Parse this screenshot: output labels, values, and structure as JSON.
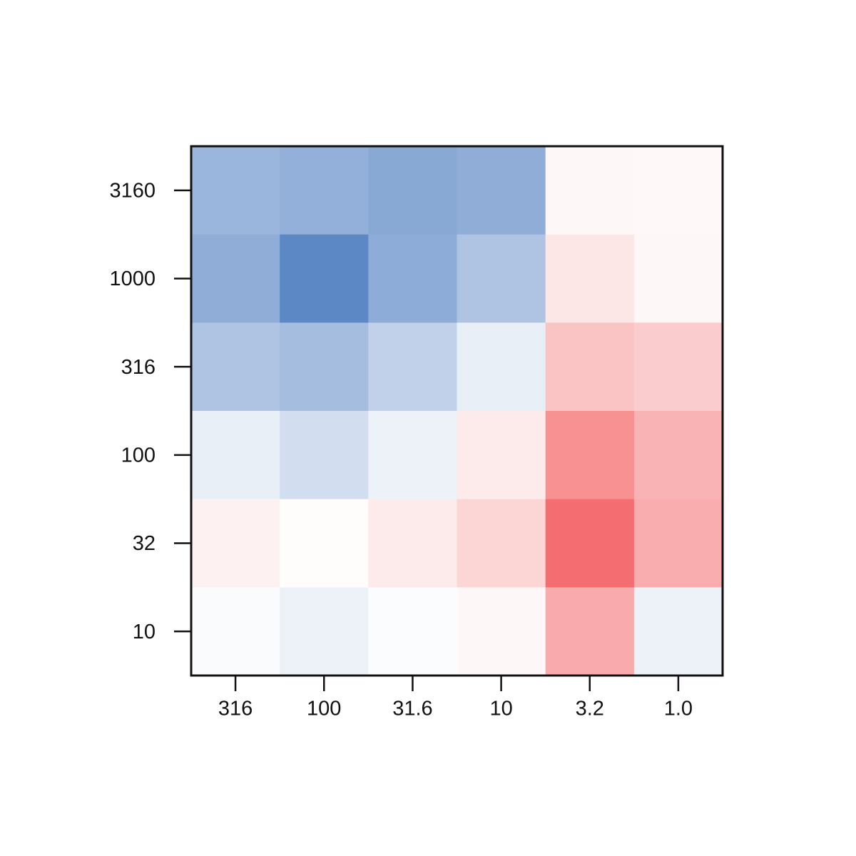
{
  "chart_data": {
    "type": "heatmap",
    "x_categories": [
      "316",
      "100",
      "31.6",
      "10",
      "3.2",
      "1.0"
    ],
    "y_categories": [
      "3160",
      "1000",
      "316",
      "100",
      "32",
      "10"
    ],
    "values": [
      [
        -0.55,
        -0.6,
        -0.65,
        -0.62,
        0.05,
        0.04
      ],
      [
        -0.62,
        -0.9,
        -0.63,
        -0.45,
        0.15,
        0.05
      ],
      [
        -0.45,
        -0.5,
        -0.35,
        -0.12,
        0.35,
        0.3
      ],
      [
        -0.12,
        -0.25,
        -0.1,
        0.12,
        0.65,
        0.45
      ],
      [
        0.08,
        0.02,
        0.12,
        0.25,
        0.85,
        0.48
      ],
      [
        -0.03,
        -0.1,
        -0.02,
        0.05,
        0.5,
        -0.1
      ]
    ],
    "vlim": [
      -1,
      1
    ],
    "colormap": [
      "#4a7bbf",
      "#ffffff",
      "#f25558"
    ]
  }
}
